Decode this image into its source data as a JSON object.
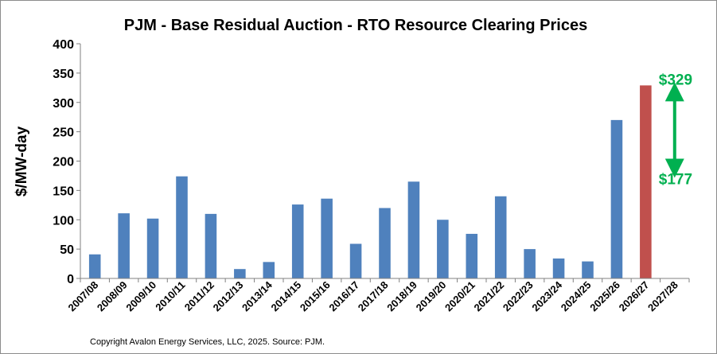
{
  "chart_data": {
    "type": "bar",
    "title": "PJM - Base Residual Auction - RTO Resource Clearing Prices",
    "ylabel": "$/MW-day",
    "xlabel": "",
    "ylim": [
      0,
      400
    ],
    "yticks": [
      0,
      50,
      100,
      150,
      200,
      250,
      300,
      350,
      400
    ],
    "grid": false,
    "categories": [
      "2007/08",
      "2008/09",
      "2009/10",
      "2010/11",
      "2011/12",
      "2012/13",
      "2013/14",
      "2014/15",
      "2015/16",
      "2016/17",
      "2017/18",
      "2018/19",
      "2019/20",
      "2020/21",
      "2021/22",
      "2022/23",
      "2023/24",
      "2024/25",
      "2025/26",
      "2026/27",
      "2027/28"
    ],
    "values": [
      41,
      111,
      102,
      174,
      110,
      16,
      28,
      126,
      136,
      59,
      120,
      165,
      100,
      76,
      140,
      50,
      34,
      29,
      270,
      329,
      null
    ],
    "colors": {
      "bar": "#4f81bd",
      "highlight_bar": "#c0504d",
      "annotation": "#00b050"
    },
    "highlight_index": 19,
    "annotations": {
      "upper_label": "$329",
      "lower_label": "$177",
      "arrow_from": 177,
      "arrow_to": 329
    }
  },
  "footer": "Copyright Avalon Energy Services, LLC, 2025.   Source: PJM."
}
